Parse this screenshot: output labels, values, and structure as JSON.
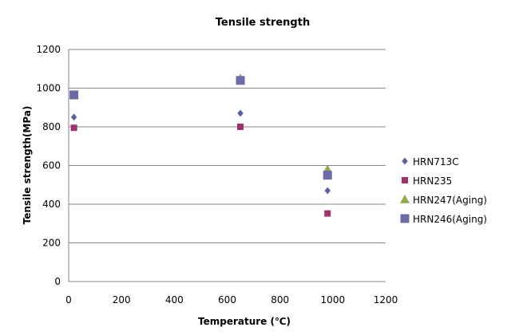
{
  "chart_data": {
    "type": "scatter",
    "title": "Tensile strength",
    "xlabel": "Temperature (℃)",
    "ylabel": "Tensile strength(MPa)",
    "xlim": [
      0,
      1200
    ],
    "ylim": [
      0,
      1200
    ],
    "x_ticks": [
      "0",
      "200",
      "400",
      "600",
      "800",
      "1000",
      "1200"
    ],
    "y_ticks": [
      "0",
      "200",
      "400",
      "600",
      "800",
      "1000",
      "1200"
    ],
    "grid": "horizontal",
    "legend_position": "right",
    "series": [
      {
        "name": "HRN713C",
        "marker": "diamond",
        "color": "#5b5ea6",
        "points": [
          [
            20,
            850
          ],
          [
            650,
            870
          ],
          [
            980,
            470
          ]
        ]
      },
      {
        "name": "HRN235",
        "marker": "square",
        "color": "#a0306e",
        "points": [
          [
            20,
            795
          ],
          [
            650,
            800
          ],
          [
            980,
            352
          ]
        ]
      },
      {
        "name": "HRN247(Aging)",
        "marker": "triangle",
        "color": "#8faa4a",
        "points": [
          [
            20,
            965
          ],
          [
            650,
            1050
          ],
          [
            980,
            580
          ]
        ]
      },
      {
        "name": "HRN246(Aging)",
        "marker": "square",
        "color": "#6b6ba8",
        "points": [
          [
            20,
            965
          ],
          [
            650,
            1040
          ],
          [
            980,
            550
          ]
        ]
      }
    ]
  }
}
